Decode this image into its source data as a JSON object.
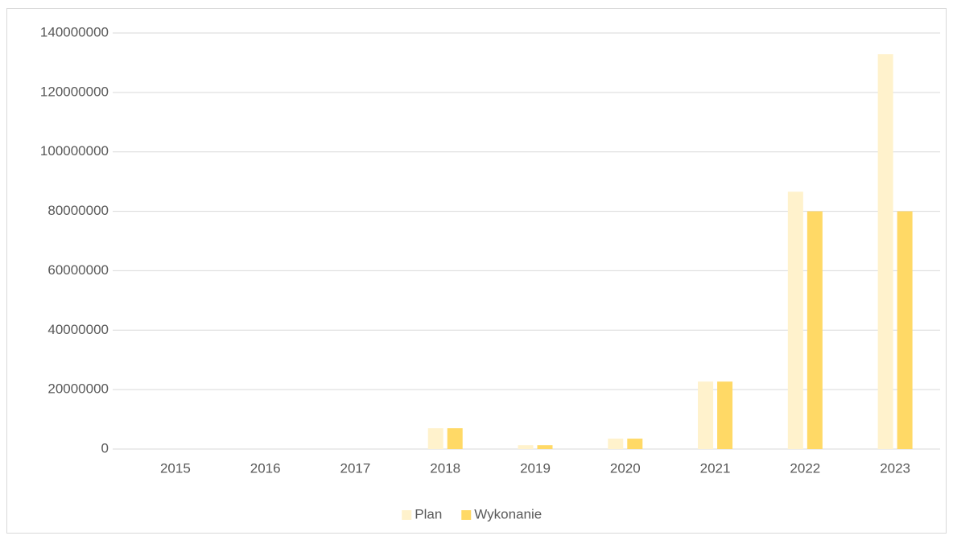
{
  "chart_data": {
    "type": "bar",
    "categories": [
      "2015",
      "2016",
      "2017",
      "2018",
      "2019",
      "2020",
      "2021",
      "2022",
      "2023"
    ],
    "series": [
      {
        "name": "Plan",
        "color": "#fff2cc",
        "values": [
          0,
          0,
          0,
          7000000,
          1300000,
          3500000,
          22700000,
          86600000,
          132900000
        ]
      },
      {
        "name": "Wykonanie",
        "color": "#ffd966",
        "values": [
          0,
          0,
          0,
          7000000,
          1300000,
          3500000,
          22700000,
          80000000,
          80000000
        ]
      }
    ],
    "ylim": [
      0,
      140000000
    ],
    "yticks": [
      0,
      20000000,
      40000000,
      60000000,
      80000000,
      100000000,
      120000000,
      140000000
    ],
    "grid": true,
    "legend": "bottom"
  }
}
